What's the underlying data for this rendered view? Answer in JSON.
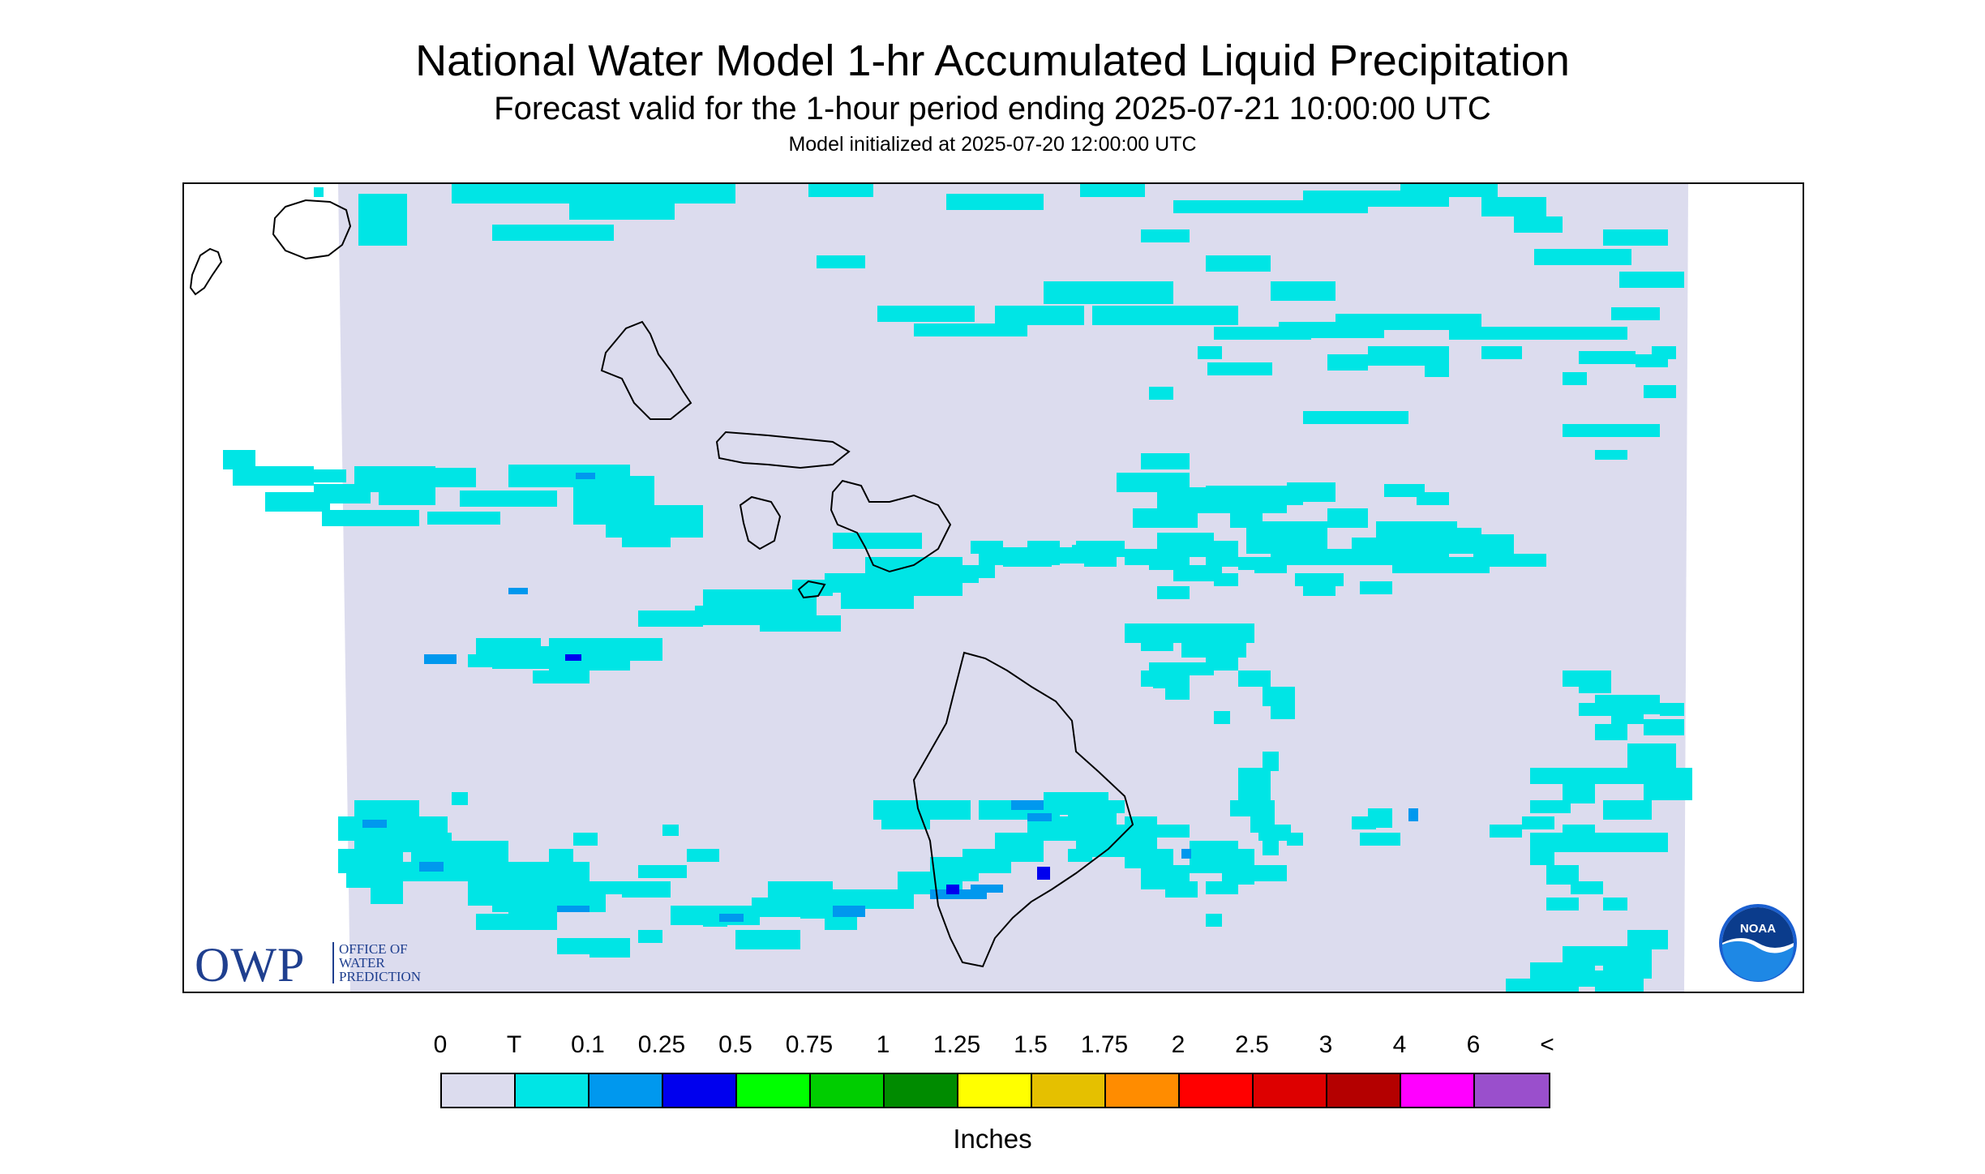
{
  "title": "National Water Model 1-hr Accumulated Liquid Precipitation",
  "subtitle": "Forecast valid for the 1-hour period ending 2025-07-21 10:00:00 UTC",
  "init_line": "Model initialized at 2025-07-20 12:00:00 UTC",
  "logos": {
    "owp_big": "OWP",
    "owp_lines": [
      "OFFICE OF",
      "WATER",
      "PREDICTION"
    ],
    "noaa": "NOAA"
  },
  "legend": {
    "labels": [
      "0",
      "T",
      "0.1",
      "0.25",
      "0.5",
      "0.75",
      "1",
      "1.25",
      "1.5",
      "1.75",
      "2",
      "2.5",
      "3",
      "4",
      "6",
      "<"
    ],
    "colors": [
      "#dcdcee",
      "#00e5e5",
      "#0098ee",
      "#0000ee",
      "#00ff00",
      "#00cd00",
      "#008b00",
      "#ffff00",
      "#e5c000",
      "#ff8c00",
      "#ff0000",
      "#dd0000",
      "#b40000",
      "#ff00ff",
      "#9a4fcc"
    ],
    "units": "Inches"
  },
  "map_colors": {
    "background": "#dcdcee",
    "trace": "#00e5e5",
    "light": "#0098ee",
    "moderate": "#0000ee",
    "coast": "#000000"
  }
}
